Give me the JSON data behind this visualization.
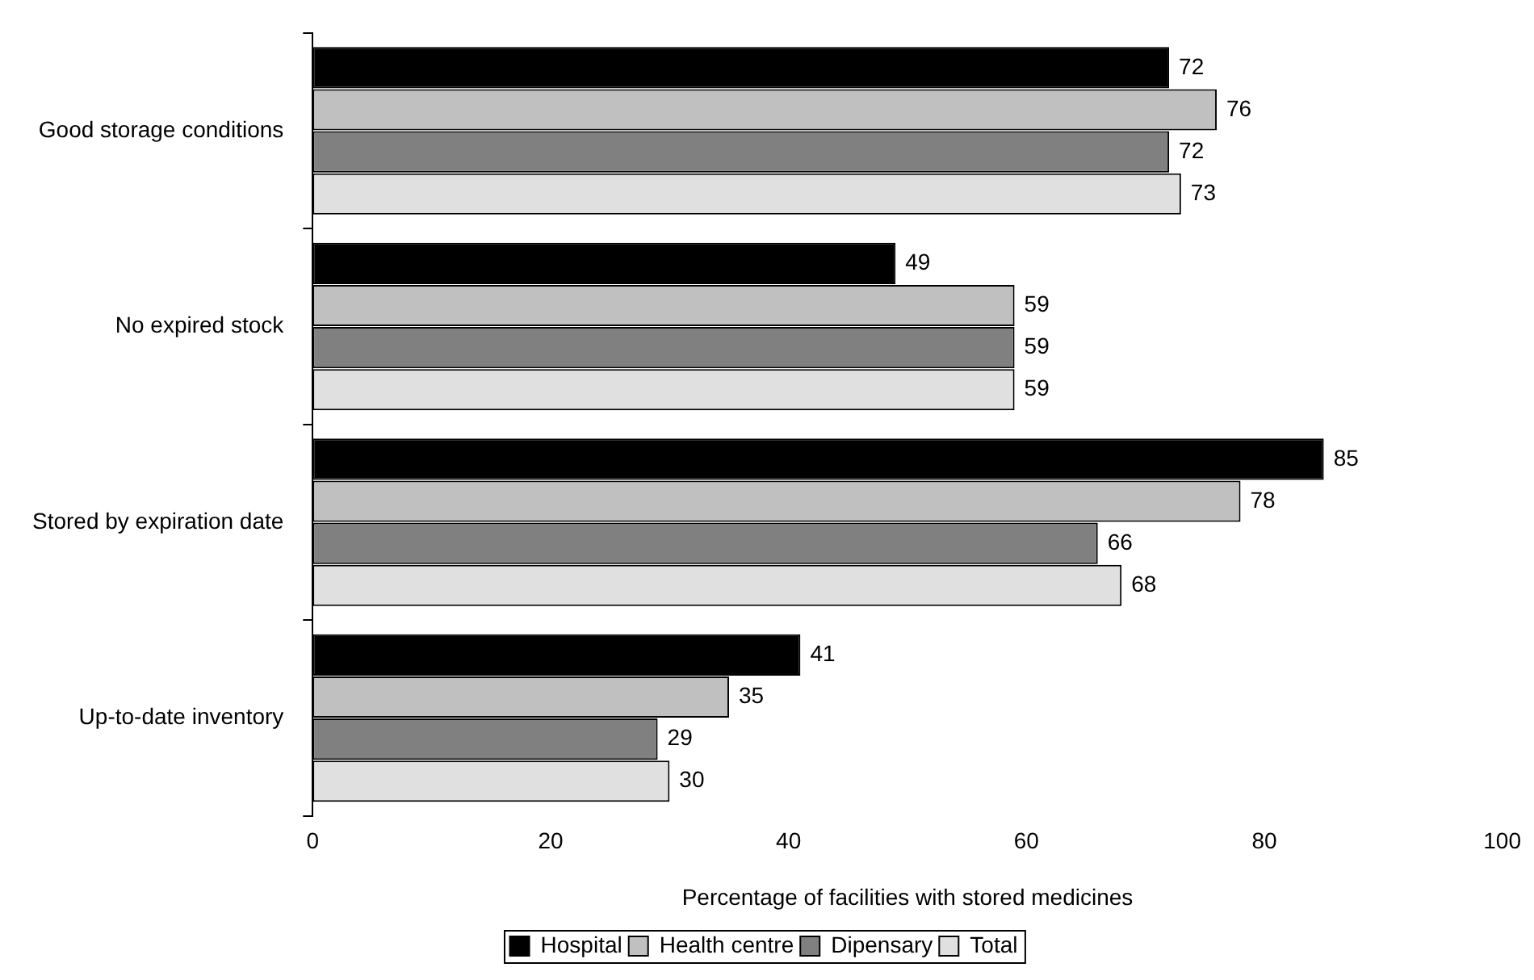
{
  "chart_data": {
    "type": "bar",
    "orientation": "horizontal",
    "xlabel": "Percentage of facilities with stored medicines",
    "categories": [
      "Good storage conditions",
      "No expired stock",
      "Stored by expiration date",
      "Up-to-date inventory"
    ],
    "series": [
      {
        "name": "Hospital",
        "color": "#000000",
        "values": [
          72,
          49,
          85,
          41
        ]
      },
      {
        "name": "Health centre",
        "color": "#c0c0c0",
        "values": [
          76,
          59,
          78,
          35
        ]
      },
      {
        "name": "Dipensary",
        "color": "#808080",
        "values": [
          72,
          59,
          66,
          29
        ]
      },
      {
        "name": "Total",
        "color": "#e0e0e0",
        "values": [
          73,
          59,
          68,
          30
        ]
      }
    ],
    "xlim": [
      0,
      100
    ],
    "xticks": [
      0,
      20,
      40,
      60,
      80,
      100
    ],
    "grid": false,
    "legend": "bottom",
    "data_labels": true
  }
}
